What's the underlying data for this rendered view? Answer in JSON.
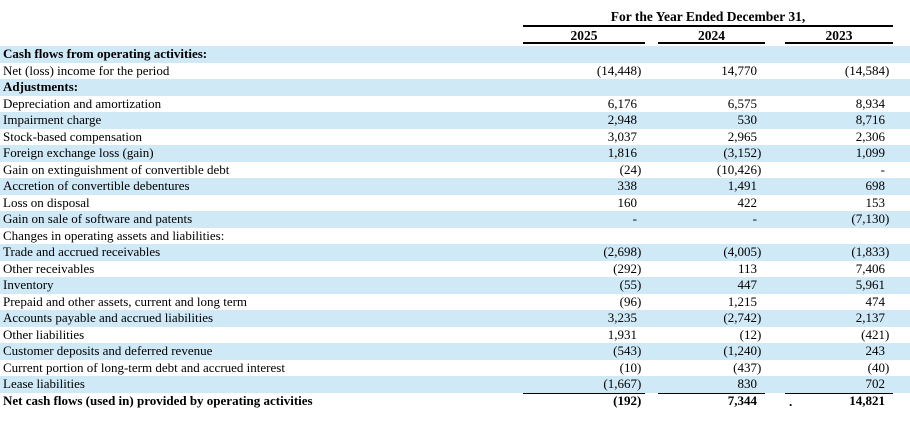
{
  "table": {
    "period_header": "For the Year Ended December 31,",
    "years": [
      "2025",
      "2024",
      "2023"
    ],
    "rows": [
      {
        "label": "Cash flows from operating activities:",
        "style": "section",
        "values": [
          "",
          "",
          ""
        ]
      },
      {
        "label": "Net (loss) income for the period",
        "style": "",
        "values": [
          "(14,448)",
          "14,770",
          "(14,584)"
        ]
      },
      {
        "label": "Adjustments:",
        "style": "section",
        "values": [
          "",
          "",
          ""
        ]
      },
      {
        "label": "Depreciation and amortization",
        "style": "",
        "values": [
          "6,176",
          "6,575",
          "8,934"
        ]
      },
      {
        "label": "Impairment charge",
        "style": "",
        "values": [
          "2,948",
          "530",
          "8,716"
        ]
      },
      {
        "label": "Stock-based compensation",
        "style": "",
        "values": [
          "3,037",
          "2,965",
          "2,306"
        ]
      },
      {
        "label": "Foreign exchange loss (gain)",
        "style": "",
        "values": [
          "1,816",
          "(3,152)",
          "1,099"
        ]
      },
      {
        "label": "Gain on extinguishment of convertible debt",
        "style": "",
        "values": [
          "(24)",
          "(10,426)",
          "-"
        ]
      },
      {
        "label": "Accretion of convertible debentures",
        "style": "",
        "values": [
          "338",
          "1,491",
          "698"
        ]
      },
      {
        "label": "Loss on disposal",
        "style": "",
        "values": [
          "160",
          "422",
          "153"
        ]
      },
      {
        "label": "Gain on sale of software and patents",
        "style": "",
        "values": [
          "-",
          "-",
          "(7,130)"
        ]
      },
      {
        "label": "Changes in operating assets and liabilities:",
        "style": "subheader",
        "values": [
          "",
          "",
          ""
        ]
      },
      {
        "label": "Trade and accrued receivables",
        "style": "",
        "values": [
          "(2,698)",
          "(4,005)",
          "(1,833)"
        ]
      },
      {
        "label": "Other receivables",
        "style": "",
        "values": [
          "(292)",
          "113",
          "7,406"
        ]
      },
      {
        "label": "Inventory",
        "style": "",
        "values": [
          "(55)",
          "447",
          "5,961"
        ]
      },
      {
        "label": "Prepaid and other assets, current and long term",
        "style": "",
        "values": [
          "(96)",
          "1,215",
          "474"
        ]
      },
      {
        "label": "Accounts payable and accrued liabilities",
        "style": "",
        "values": [
          "3,235",
          "(2,742)",
          "2,137"
        ]
      },
      {
        "label": "Other liabilities",
        "style": "",
        "values": [
          "1,931",
          "(12)",
          "(421)"
        ]
      },
      {
        "label": "Customer deposits and deferred revenue",
        "style": "",
        "values": [
          "(543)",
          "(1,240)",
          "243"
        ]
      },
      {
        "label": "Current portion of long-term debt and accrued interest",
        "style": "",
        "values": [
          "(10)",
          "(437)",
          "(40)"
        ]
      },
      {
        "label": "Lease liabilities",
        "style": "rule-below",
        "values": [
          "(1,667)",
          "830",
          "702"
        ]
      },
      {
        "label": "Net cash flows (used in) provided by operating activities",
        "style": "total",
        "values": [
          "(192)",
          "7,344",
          "14,821"
        ]
      }
    ],
    "colors": {
      "row_highlight": "#cfe9f7",
      "text": "#000000"
    },
    "stray_mark": "."
  }
}
